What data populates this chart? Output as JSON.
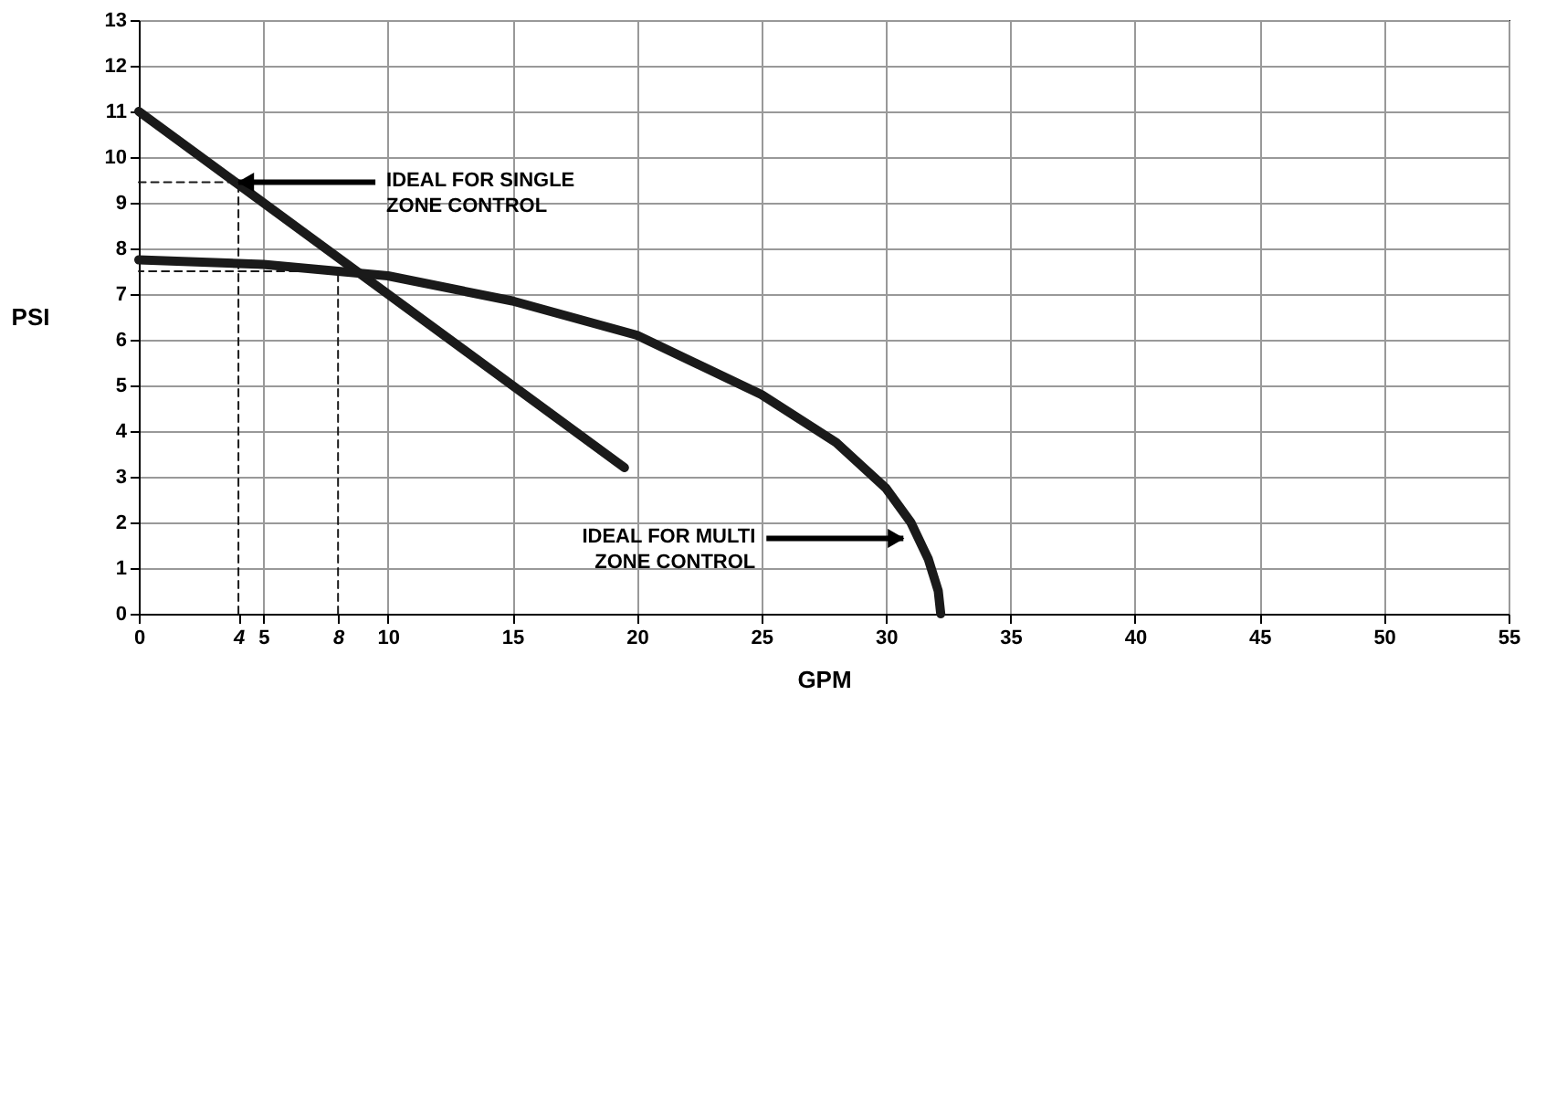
{
  "chart_data": {
    "type": "line",
    "xlabel": "GPM",
    "ylabel": "PSI",
    "xlim": [
      0,
      55
    ],
    "xticks": [
      0,
      4,
      5,
      8,
      10,
      15,
      20,
      25,
      30,
      35,
      40,
      45,
      50,
      55
    ],
    "ylim": [
      0,
      13
    ],
    "yticks": [
      0,
      1,
      2,
      3,
      4,
      5,
      6,
      7,
      8,
      9,
      10,
      11,
      12,
      13
    ],
    "grid": true,
    "marker": "none",
    "series": [
      {
        "color": "#1a1a1a",
        "line_style": "solid",
        "x": [
          0,
          19.5
        ],
        "values": [
          11,
          3.2
        ]
      },
      {
        "color": "#1a1a1a",
        "line_style": "solid",
        "x": [
          0,
          5,
          8,
          10,
          15,
          20,
          25,
          28,
          30,
          31,
          31.7,
          32.1,
          32.2
        ],
        "values": [
          7.75,
          7.65,
          7.5,
          7.4,
          6.85,
          6.1,
          4.8,
          3.75,
          2.75,
          2.0,
          1.2,
          0.5,
          0
        ]
      },
      {
        "color": "#1a1a1a",
        "line_style": "dashed",
        "x": [
          4,
          4,
          0
        ],
        "values": [
          0,
          9.45,
          9.45
        ]
      },
      {
        "color": "#1a1a1a",
        "line_style": "dashed",
        "x": [
          8,
          8,
          0
        ],
        "values": [
          0,
          7.5,
          7.5
        ]
      }
    ],
    "annotations": [
      {
        "text": "IDEAL FOR SINGLE\nZONE CONTROL",
        "x": 4,
        "y": 9.45
      },
      {
        "text": "IDEAL FOR MULTI\nZONE CONTROL",
        "x": 30.7,
        "y": 1.65
      }
    ]
  }
}
